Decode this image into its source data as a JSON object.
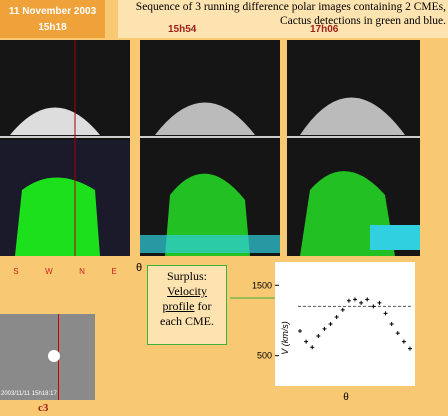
{
  "header": {
    "date": "11 November 2003",
    "time_1": "15h18",
    "caption": "Sequence of 3 running difference polar images containing 2 CMEs, Cactus detections in green and blue.",
    "time_2": "15h54",
    "time_3": "17h06"
  },
  "panel_axis": {
    "directions": [
      "S",
      "W",
      "N",
      "E"
    ],
    "x_label": "θ"
  },
  "c3_image": {
    "timestamp": "2003/11/11 15h18:17",
    "label": "c3"
  },
  "note": {
    "line_1": "Surplus:",
    "line_2": "Velocity",
    "line_3": "profile",
    "line_4": "for",
    "line_5": "each CME."
  },
  "velocity_plot": {
    "y_label": "V (km/s)",
    "x_label": "θ",
    "ylim": [
      70,
      1830
    ],
    "yticks": [
      500,
      1500
    ],
    "reference_line": 1200,
    "values": [
      850,
      700,
      620,
      780,
      880,
      950,
      1050,
      1150,
      1280,
      1300,
      1250,
      1300,
      1200,
      1250,
      1100,
      950,
      820,
      700,
      600
    ]
  }
}
